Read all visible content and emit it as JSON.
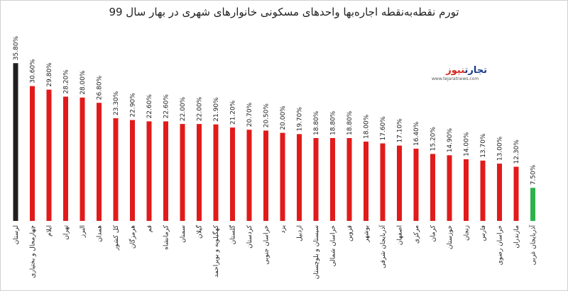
{
  "title": "تورم نقطه‌به‌نقطه اجاره‌بها واحدهای مسکونی خانوارهای شهری در بهار سال 99",
  "logo": {
    "name_part1": "تجارت",
    "name_part2": "نیوز",
    "url": "www.tejaratnews.com"
  },
  "colors": {
    "default": "#e11b1b",
    "first": "#231f20",
    "last": "#2eb24b"
  },
  "chart_data": {
    "type": "bar",
    "title": "تورم نقطه‌به‌نقطه اجاره‌بها واحدهای مسکونی خانوارهای شهری در بهار سال 99",
    "categories": [
      "لرستان",
      "چهارمحال و بختیاری",
      "ایلام",
      "تهران",
      "البرز",
      "همدان",
      "کل کشور",
      "هرمزگان",
      "قم",
      "کرمانشاه",
      "سمنان",
      "گیلان",
      "کهگیلویه و بویراحمد",
      "گلستان",
      "کردستان",
      "خراسان جنوبی",
      "یزد",
      "اردبیل",
      "سیستان و بلوچستان",
      "خراسان شمالی",
      "قزوین",
      "بوشهر",
      "آذربایجان شرقی",
      "اصفهان",
      "مرکزی",
      "کرمان",
      "خوزستان",
      "زنجان",
      "فارس",
      "خراسان رضوی",
      "مازندران",
      "آذربایجان غربی"
    ],
    "values": [
      35.8,
      30.6,
      29.8,
      28.2,
      28.0,
      26.8,
      23.3,
      22.9,
      22.6,
      22.6,
      22.0,
      22.0,
      21.9,
      21.2,
      20.7,
      20.5,
      20.0,
      19.7,
      18.8,
      18.8,
      18.8,
      18.0,
      17.6,
      17.1,
      16.4,
      15.2,
      14.9,
      14.0,
      13.7,
      13.0,
      12.3,
      7.5
    ],
    "value_labels": [
      "35.80%",
      "30.60%",
      "29.80%",
      "28.20%",
      "28.00%",
      "26.80%",
      "23.30%",
      "22.90%",
      "22.60%",
      "22.60%",
      "22.00%",
      "22.00%",
      "21.90%",
      "21.20%",
      "20.70%",
      "20.50%",
      "20.00%",
      "19.70%",
      "18.80%",
      "18.80%",
      "18.80%",
      "18.00%",
      "17.60%",
      "17.10%",
      "16.40%",
      "15.20%",
      "14.90%",
      "14.00%",
      "13.70%",
      "13.00%",
      "12.30%",
      "7.50%"
    ],
    "ylim": [
      0,
      36
    ],
    "unit": "%",
    "grid": false,
    "legend": "none"
  }
}
